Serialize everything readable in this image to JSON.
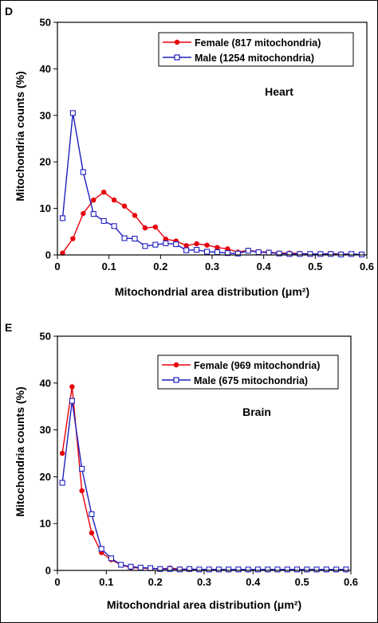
{
  "chart_data": [
    {
      "panel": "D",
      "type": "line",
      "annotation": "Heart",
      "xlabel": "Mitochondrial area distribution (μm²)",
      "ylabel": "Mitochondria counts (%)",
      "xlim": [
        0,
        0.6
      ],
      "ylim": [
        0,
        50
      ],
      "xticks": [
        "0",
        "0.1",
        "0.2",
        "0.3",
        "0.4",
        "0.5",
        "0.6"
      ],
      "yticks": [
        "0",
        "10",
        "20",
        "30",
        "40",
        "50"
      ],
      "legend_position": "top-right",
      "grid": false,
      "series": [
        {
          "name": "Female (817 mitochondria)",
          "color": "#e8000b",
          "marker": "filled-circle",
          "x": [
            0.01,
            0.03,
            0.05,
            0.07,
            0.09,
            0.11,
            0.13,
            0.15,
            0.17,
            0.19,
            0.21,
            0.23,
            0.25,
            0.27,
            0.29,
            0.31,
            0.33,
            0.35,
            0.37,
            0.39,
            0.41,
            0.43,
            0.45,
            0.47,
            0.49,
            0.51,
            0.53,
            0.55,
            0.57,
            0.59
          ],
          "y": [
            0.4,
            3.5,
            8.9,
            11.8,
            13.5,
            11.8,
            10.5,
            8.5,
            5.8,
            6.0,
            3.4,
            3.0,
            2.0,
            2.4,
            2.1,
            1.6,
            1.3,
            0.6,
            1.0,
            0.7,
            0.6,
            0.4,
            0.4,
            0.3,
            0.2,
            0.2,
            0.3,
            0.2,
            0.2,
            0.1
          ]
        },
        {
          "name": "Male (1254 mitochondria)",
          "color": "#1f1fbf",
          "marker": "open-square",
          "x": [
            0.01,
            0.03,
            0.05,
            0.07,
            0.09,
            0.11,
            0.13,
            0.15,
            0.17,
            0.19,
            0.21,
            0.23,
            0.25,
            0.27,
            0.29,
            0.31,
            0.33,
            0.35,
            0.37,
            0.39,
            0.41,
            0.43,
            0.45,
            0.47,
            0.49,
            0.51,
            0.53,
            0.55,
            0.57,
            0.59
          ],
          "y": [
            7.9,
            30.5,
            17.8,
            8.8,
            7.3,
            6.2,
            3.6,
            3.5,
            1.9,
            2.2,
            2.5,
            2.3,
            1.0,
            1.1,
            0.7,
            0.6,
            0.4,
            0.3,
            0.9,
            0.6,
            0.5,
            0.3,
            0.2,
            0.2,
            0.2,
            0.2,
            0.2,
            0.1,
            0.2,
            0.1
          ]
        }
      ]
    },
    {
      "panel": "E",
      "type": "line",
      "annotation": "Brain",
      "xlabel": "Mitochondrial area distribution (μm²)",
      "ylabel": "Mitochondria counts (%)",
      "xlim": [
        0,
        0.6
      ],
      "ylim": [
        0,
        50
      ],
      "xticks": [
        "0",
        "0.1",
        "0.2",
        "0.3",
        "0.4",
        "0.5",
        "0.6"
      ],
      "yticks": [
        "0",
        "10",
        "20",
        "30",
        "40",
        "50"
      ],
      "legend_position": "top-right",
      "grid": false,
      "series": [
        {
          "name": "Female (969 mitochondria)",
          "color": "#e8000b",
          "marker": "filled-circle",
          "x": [
            0.01,
            0.03,
            0.05,
            0.07,
            0.09,
            0.11,
            0.13,
            0.15,
            0.17,
            0.19,
            0.21,
            0.23,
            0.25,
            0.27,
            0.29,
            0.31,
            0.33,
            0.35,
            0.37,
            0.39,
            0.41,
            0.43,
            0.45,
            0.47,
            0.49,
            0.51,
            0.53,
            0.55,
            0.57,
            0.59
          ],
          "y": [
            25.0,
            39.2,
            17.0,
            8.0,
            3.8,
            2.3,
            1.2,
            0.6,
            0.5,
            0.4,
            0.3,
            0.5,
            0.3,
            0.2,
            0.2,
            0.2,
            0.2,
            0.1,
            0.2,
            0.1,
            0.2,
            0.1,
            0.1,
            0.1,
            0.2,
            0.1,
            0.1,
            0.1,
            0.1,
            0.1
          ]
        },
        {
          "name": "Male (675 mitochondria)",
          "color": "#1f1fbf",
          "marker": "open-square",
          "x": [
            0.01,
            0.03,
            0.05,
            0.07,
            0.09,
            0.11,
            0.13,
            0.15,
            0.17,
            0.19,
            0.21,
            0.23,
            0.25,
            0.27,
            0.29,
            0.31,
            0.33,
            0.35,
            0.37,
            0.39,
            0.41,
            0.43,
            0.45,
            0.47,
            0.49,
            0.51,
            0.53,
            0.55,
            0.57,
            0.59
          ],
          "y": [
            18.7,
            36.2,
            21.7,
            12.0,
            4.6,
            2.6,
            1.2,
            0.8,
            0.6,
            0.5,
            0.3,
            0.3,
            0.2,
            0.3,
            0.2,
            0.2,
            0.2,
            0.2,
            0.2,
            0.2,
            0.2,
            0.2,
            0.2,
            0.2,
            0.2,
            0.2,
            0.2,
            0.2,
            0.2,
            0.2
          ]
        }
      ]
    }
  ]
}
